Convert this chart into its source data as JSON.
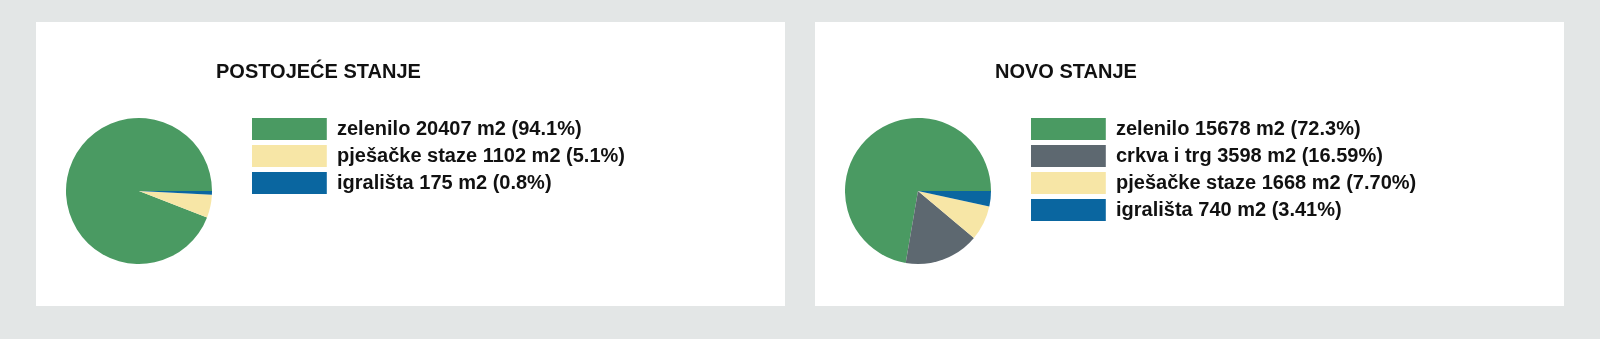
{
  "chart_data": [
    {
      "type": "pie",
      "title": "POSTOJEĆE STANJE",
      "categories": [
        "zelenilo 20407 m2 (94.1%)",
        "pješačke staze 1102 m2 (5.1%)",
        "igrališta 175 m2 (0.8%)"
      ],
      "values": [
        20407,
        1102,
        175
      ],
      "colors": [
        "#4a9a62",
        "#f7e6a6",
        "#0a66a0"
      ],
      "legend": "right"
    },
    {
      "type": "pie",
      "title": "NOVO STANJE",
      "categories": [
        "zelenilo 15678 m2 (72.3%)",
        "crkva i trg 3598 m2 (16.59%)",
        "pješačke staze 1668 m2 (7.70%)",
        "igrališta 740 m2 (3.41%)"
      ],
      "values": [
        15678,
        3598,
        1668,
        740
      ],
      "colors": [
        "#4a9a62",
        "#5d6870",
        "#f7e6a6",
        "#0a66a0"
      ],
      "legend": "right"
    }
  ]
}
